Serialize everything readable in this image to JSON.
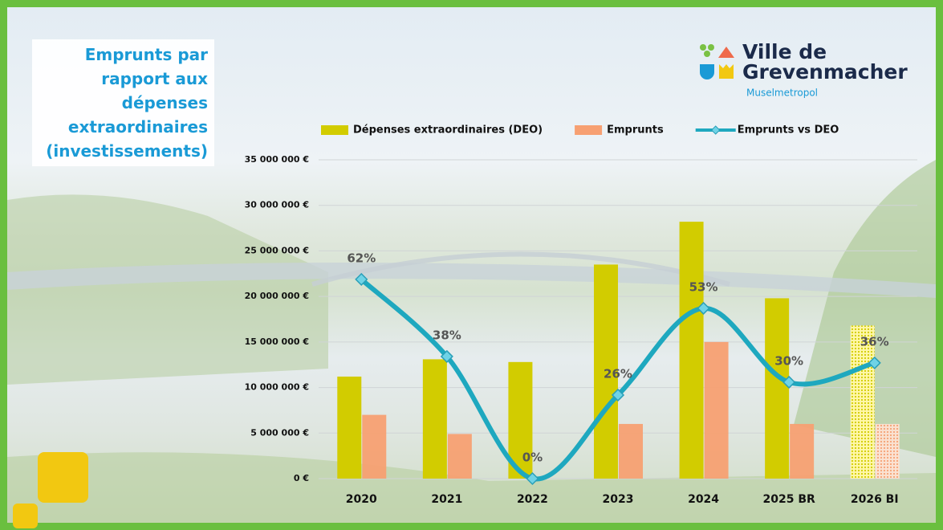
{
  "chart_data": {
    "type": "bar_line",
    "title": "Emprunts par rapport aux dépenses extraordinaires (investissements)",
    "categories": [
      "2020",
      "2021",
      "2022",
      "2023",
      "2024",
      "2025 BR",
      "2026 BI"
    ],
    "series": [
      {
        "name": "Dépenses extraordinaires (DEO)",
        "type": "bar",
        "color": "#d2cc00",
        "values": [
          11200000,
          13100000,
          12800000,
          23500000,
          28200000,
          19800000,
          16800000
        ]
      },
      {
        "name": "Emprunts",
        "type": "bar",
        "color": "#f7a072",
        "values": [
          7000000,
          4900000,
          0,
          6000000,
          15000000,
          6000000,
          6000000
        ]
      },
      {
        "name": "Emprunts vs DEO",
        "type": "line",
        "axis": "y2",
        "color": "#1ea8bf",
        "values": [
          62,
          38,
          0,
          26,
          53,
          30,
          36
        ],
        "value_labels": [
          "62%",
          "38%",
          "0%",
          "26%",
          "53%",
          "30%",
          "36%"
        ]
      }
    ],
    "ylim": [
      0,
      35000000
    ],
    "yticks": [
      {
        "value": 0,
        "label": "0 €"
      },
      {
        "value": 5000000,
        "label": "5 000 000 €"
      },
      {
        "value": 10000000,
        "label": "10 000 000 €"
      },
      {
        "value": 15000000,
        "label": "15 000 000 €"
      },
      {
        "value": 20000000,
        "label": "20 000 000 €"
      },
      {
        "value": 25000000,
        "label": "25 000 000 €"
      },
      {
        "value": 30000000,
        "label": "30 000 000 €"
      },
      {
        "value": 35000000,
        "label": "35 000 000 €"
      }
    ],
    "y2lim": [
      0,
      100
    ],
    "grid": true,
    "legend": "top"
  },
  "logo": {
    "line1": "Ville de",
    "line2": "Grevenmacher",
    "tagline": "Muselmetropol"
  }
}
